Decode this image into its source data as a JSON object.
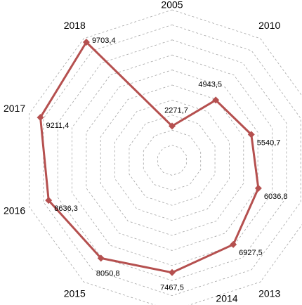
{
  "chart_data": {
    "type": "radar",
    "categories": [
      "2005",
      "2010",
      null,
      null,
      "2013",
      "2014",
      "2015",
      "2016",
      "2017",
      "2018"
    ],
    "values": [
      2271.7,
      4943.5,
      5540.7,
      6036.8,
      6927.5,
      7467.5,
      8050.8,
      8636.3,
      9211.4,
      9703.4
    ],
    "value_labels": [
      "2271,7",
      "4943,5",
      "5540,7",
      "6036,8",
      "6927,5",
      "7467,5",
      "8050,8",
      "8636,3",
      "9211,4",
      "9703,4"
    ],
    "color": "#b5504f",
    "ylim": [
      0,
      10000
    ],
    "yticks": [
      1000,
      2000,
      3000,
      4000,
      5000,
      6000,
      7000,
      8000,
      9000,
      10000
    ],
    "grid": true
  }
}
